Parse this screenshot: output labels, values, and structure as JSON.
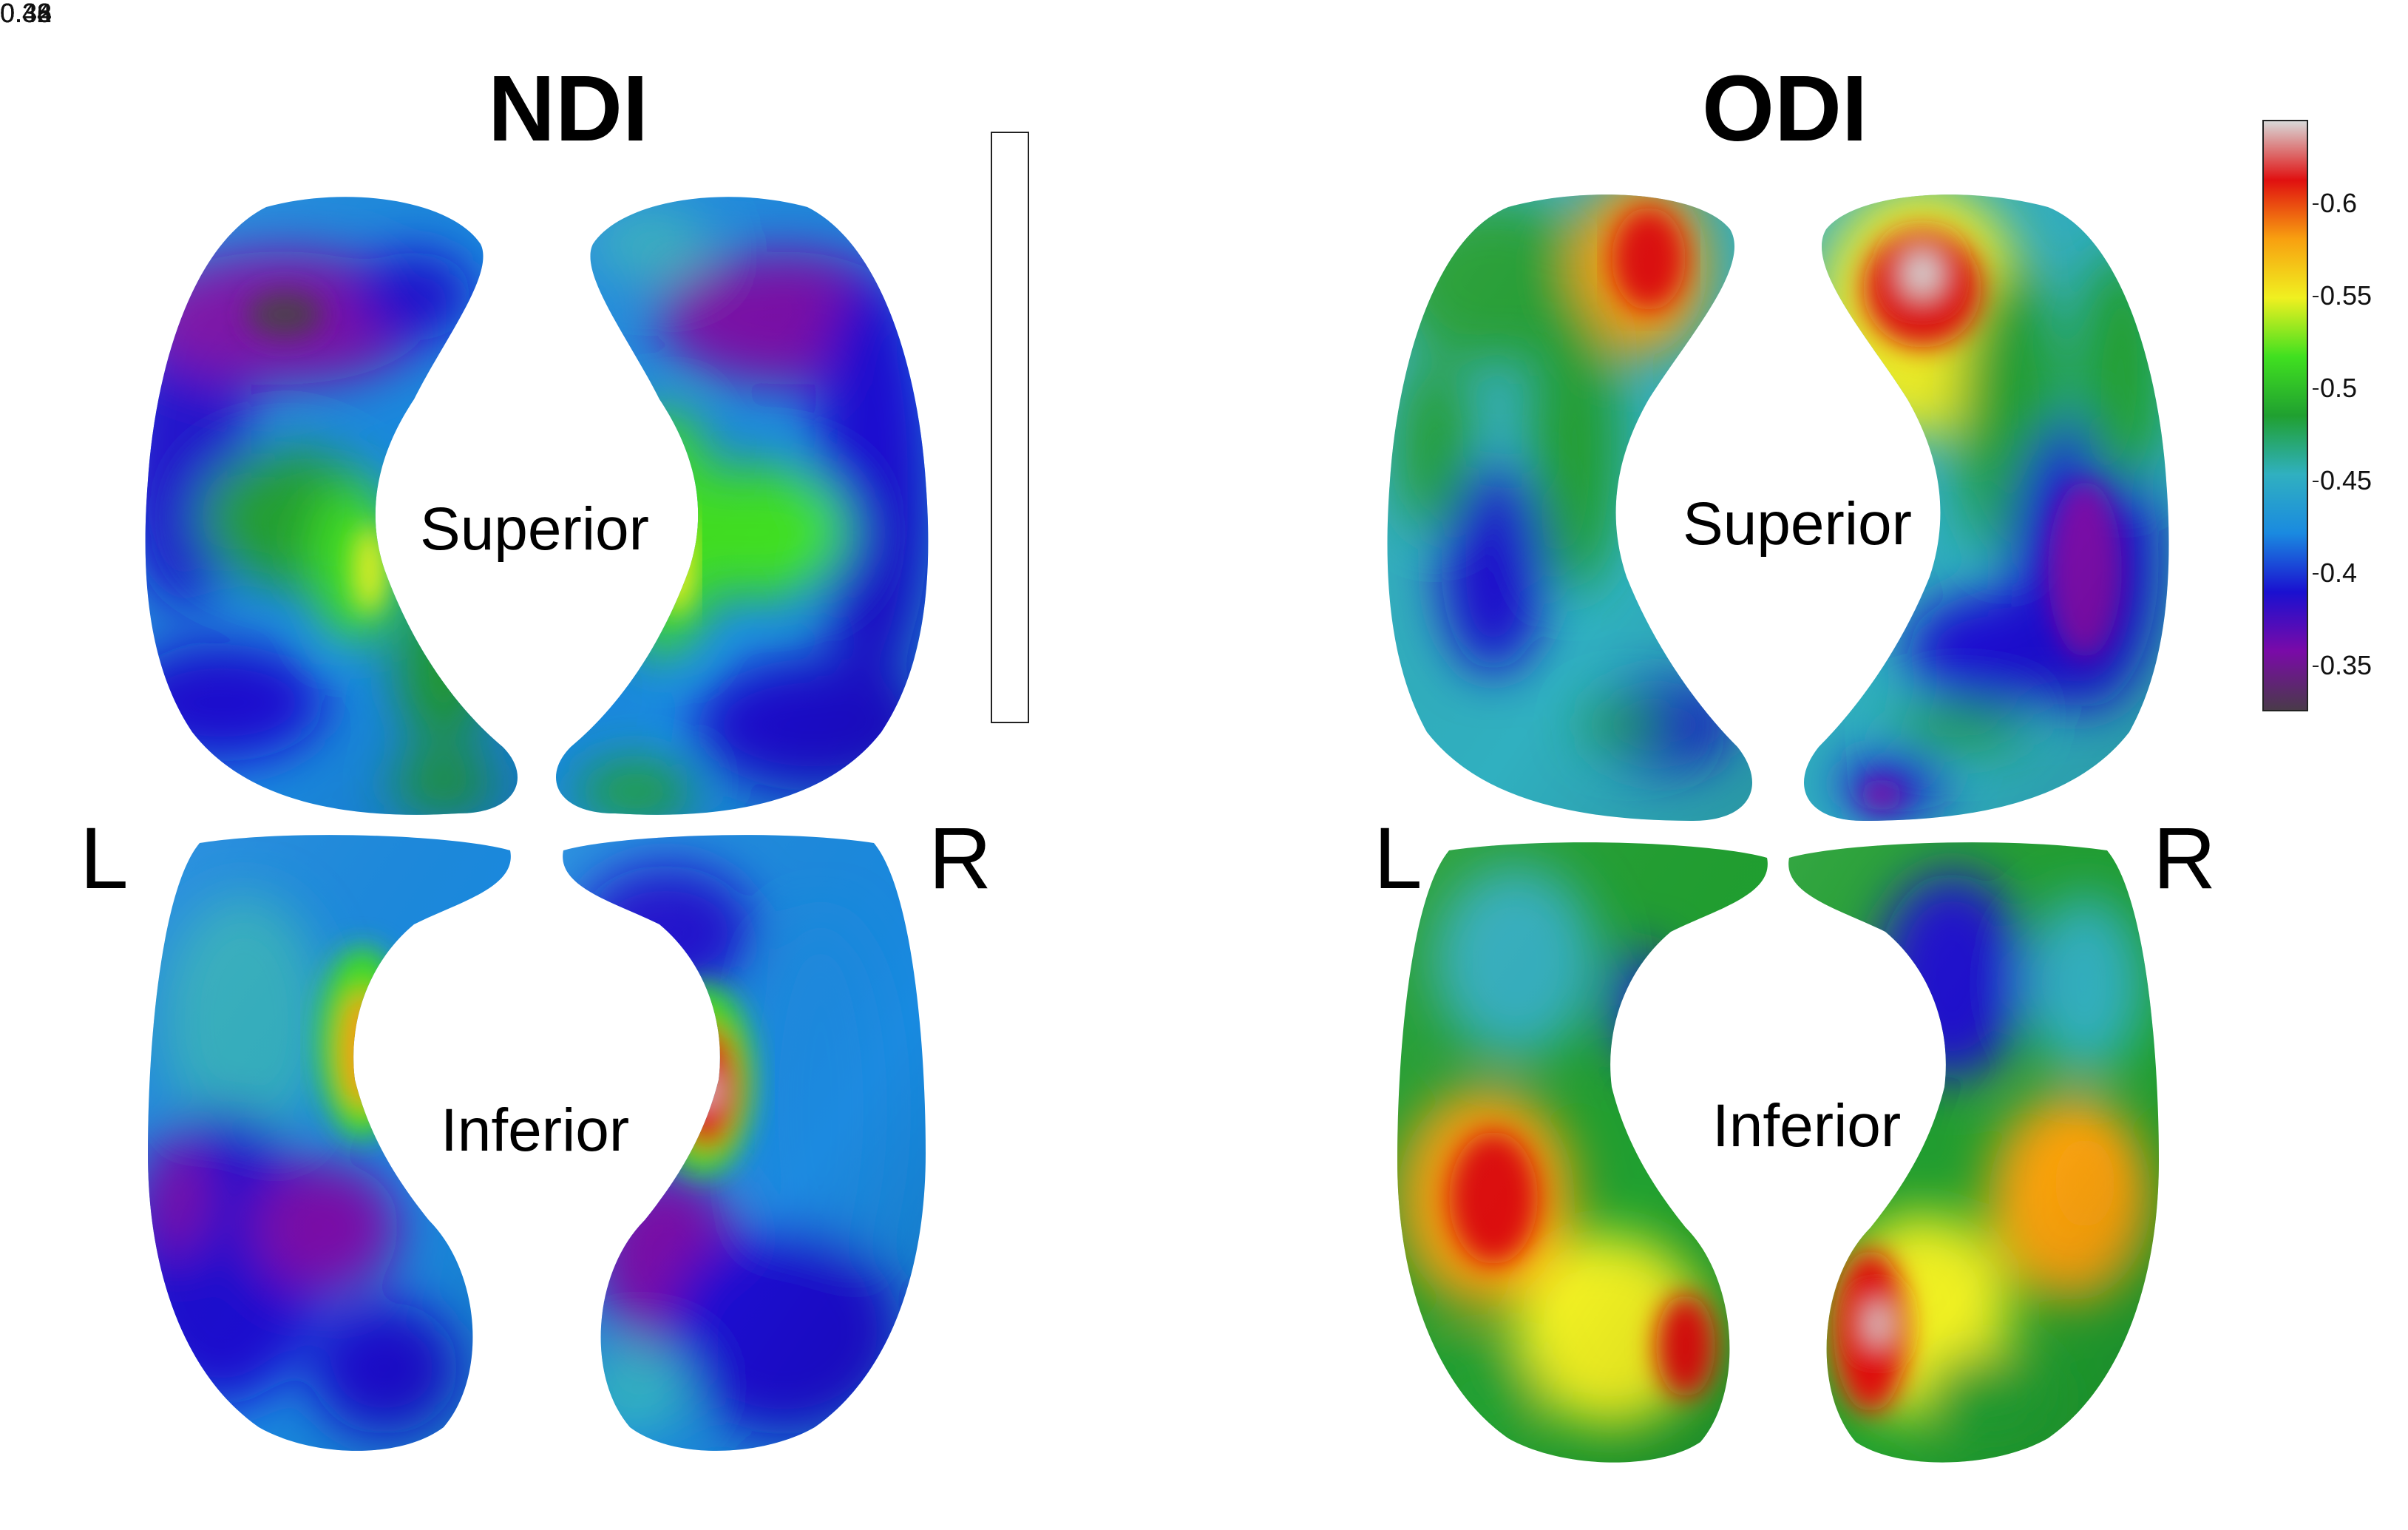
{
  "panels": {
    "ndi": {
      "title": "NDI",
      "views": {
        "superior": "Superior",
        "inferior": "Inferior"
      },
      "sides": {
        "left": "L",
        "right": "R"
      },
      "colorbar": {
        "ticks": [
          "0.46",
          "0.42",
          "0.38",
          "0.34",
          "0.3"
        ],
        "tick_values": [
          0.46,
          0.42,
          0.38,
          0.34,
          0.3
        ],
        "range": [
          0.295,
          0.466
        ]
      }
    },
    "odi": {
      "title": "ODI",
      "views": {
        "superior": "Superior",
        "inferior": "Inferior"
      },
      "sides": {
        "left": "L",
        "right": "R"
      },
      "colorbar": {
        "ticks": [
          "0.6",
          "0.55",
          "0.5",
          "0.45",
          "0.4",
          "0.35"
        ],
        "tick_values": [
          0.6,
          0.55,
          0.5,
          0.45,
          0.4,
          0.35
        ],
        "range": [
          0.325,
          0.645
        ]
      }
    }
  },
  "colormap": [
    "#4a3a4a",
    "#7a0aa8",
    "#1a10d0",
    "#1a8ae0",
    "#30b0c0",
    "#20a030",
    "#40e020",
    "#f0f020",
    "#f8a010",
    "#e01010",
    "#d8d8d8"
  ]
}
